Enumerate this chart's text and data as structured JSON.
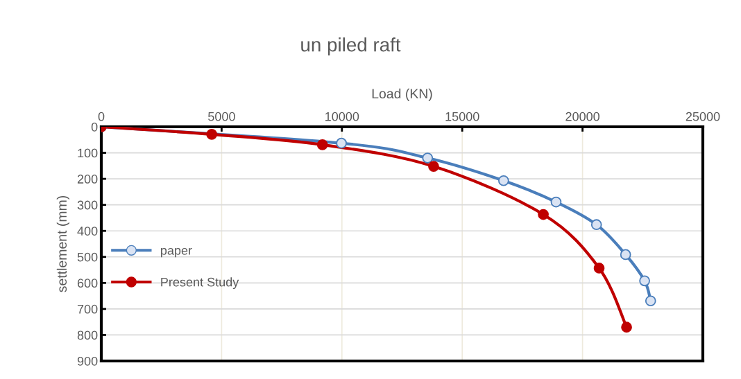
{
  "chart_data": {
    "type": "line",
    "title": "un piled raft",
    "xlabel": "Load (KN)",
    "ylabel": "settlement (mm)",
    "xlim": [
      0,
      25000
    ],
    "xticks": [
      0,
      5000,
      10000,
      15000,
      20000,
      25000
    ],
    "ylim": [
      900,
      0
    ],
    "yticks": [
      0,
      100,
      200,
      300,
      400,
      500,
      600,
      700,
      800,
      900
    ],
    "grid": true,
    "legend": "left",
    "marker": "circle",
    "line_style": "solid",
    "series": [
      {
        "name": "paper",
        "color": "#4a7ebb",
        "x": [
          0,
          9980,
          13560,
          16720,
          18900,
          20580,
          21790,
          22580,
          22830
        ],
        "values": [
          0,
          63,
          120,
          207,
          289,
          376,
          491,
          592,
          669
        ]
      },
      {
        "name": "Present Study",
        "color": "#c00000",
        "x": [
          0,
          4590,
          9190,
          13810,
          18370,
          20690,
          21830
        ],
        "values": [
          0,
          29,
          69,
          152,
          337,
          543,
          770
        ]
      }
    ]
  }
}
